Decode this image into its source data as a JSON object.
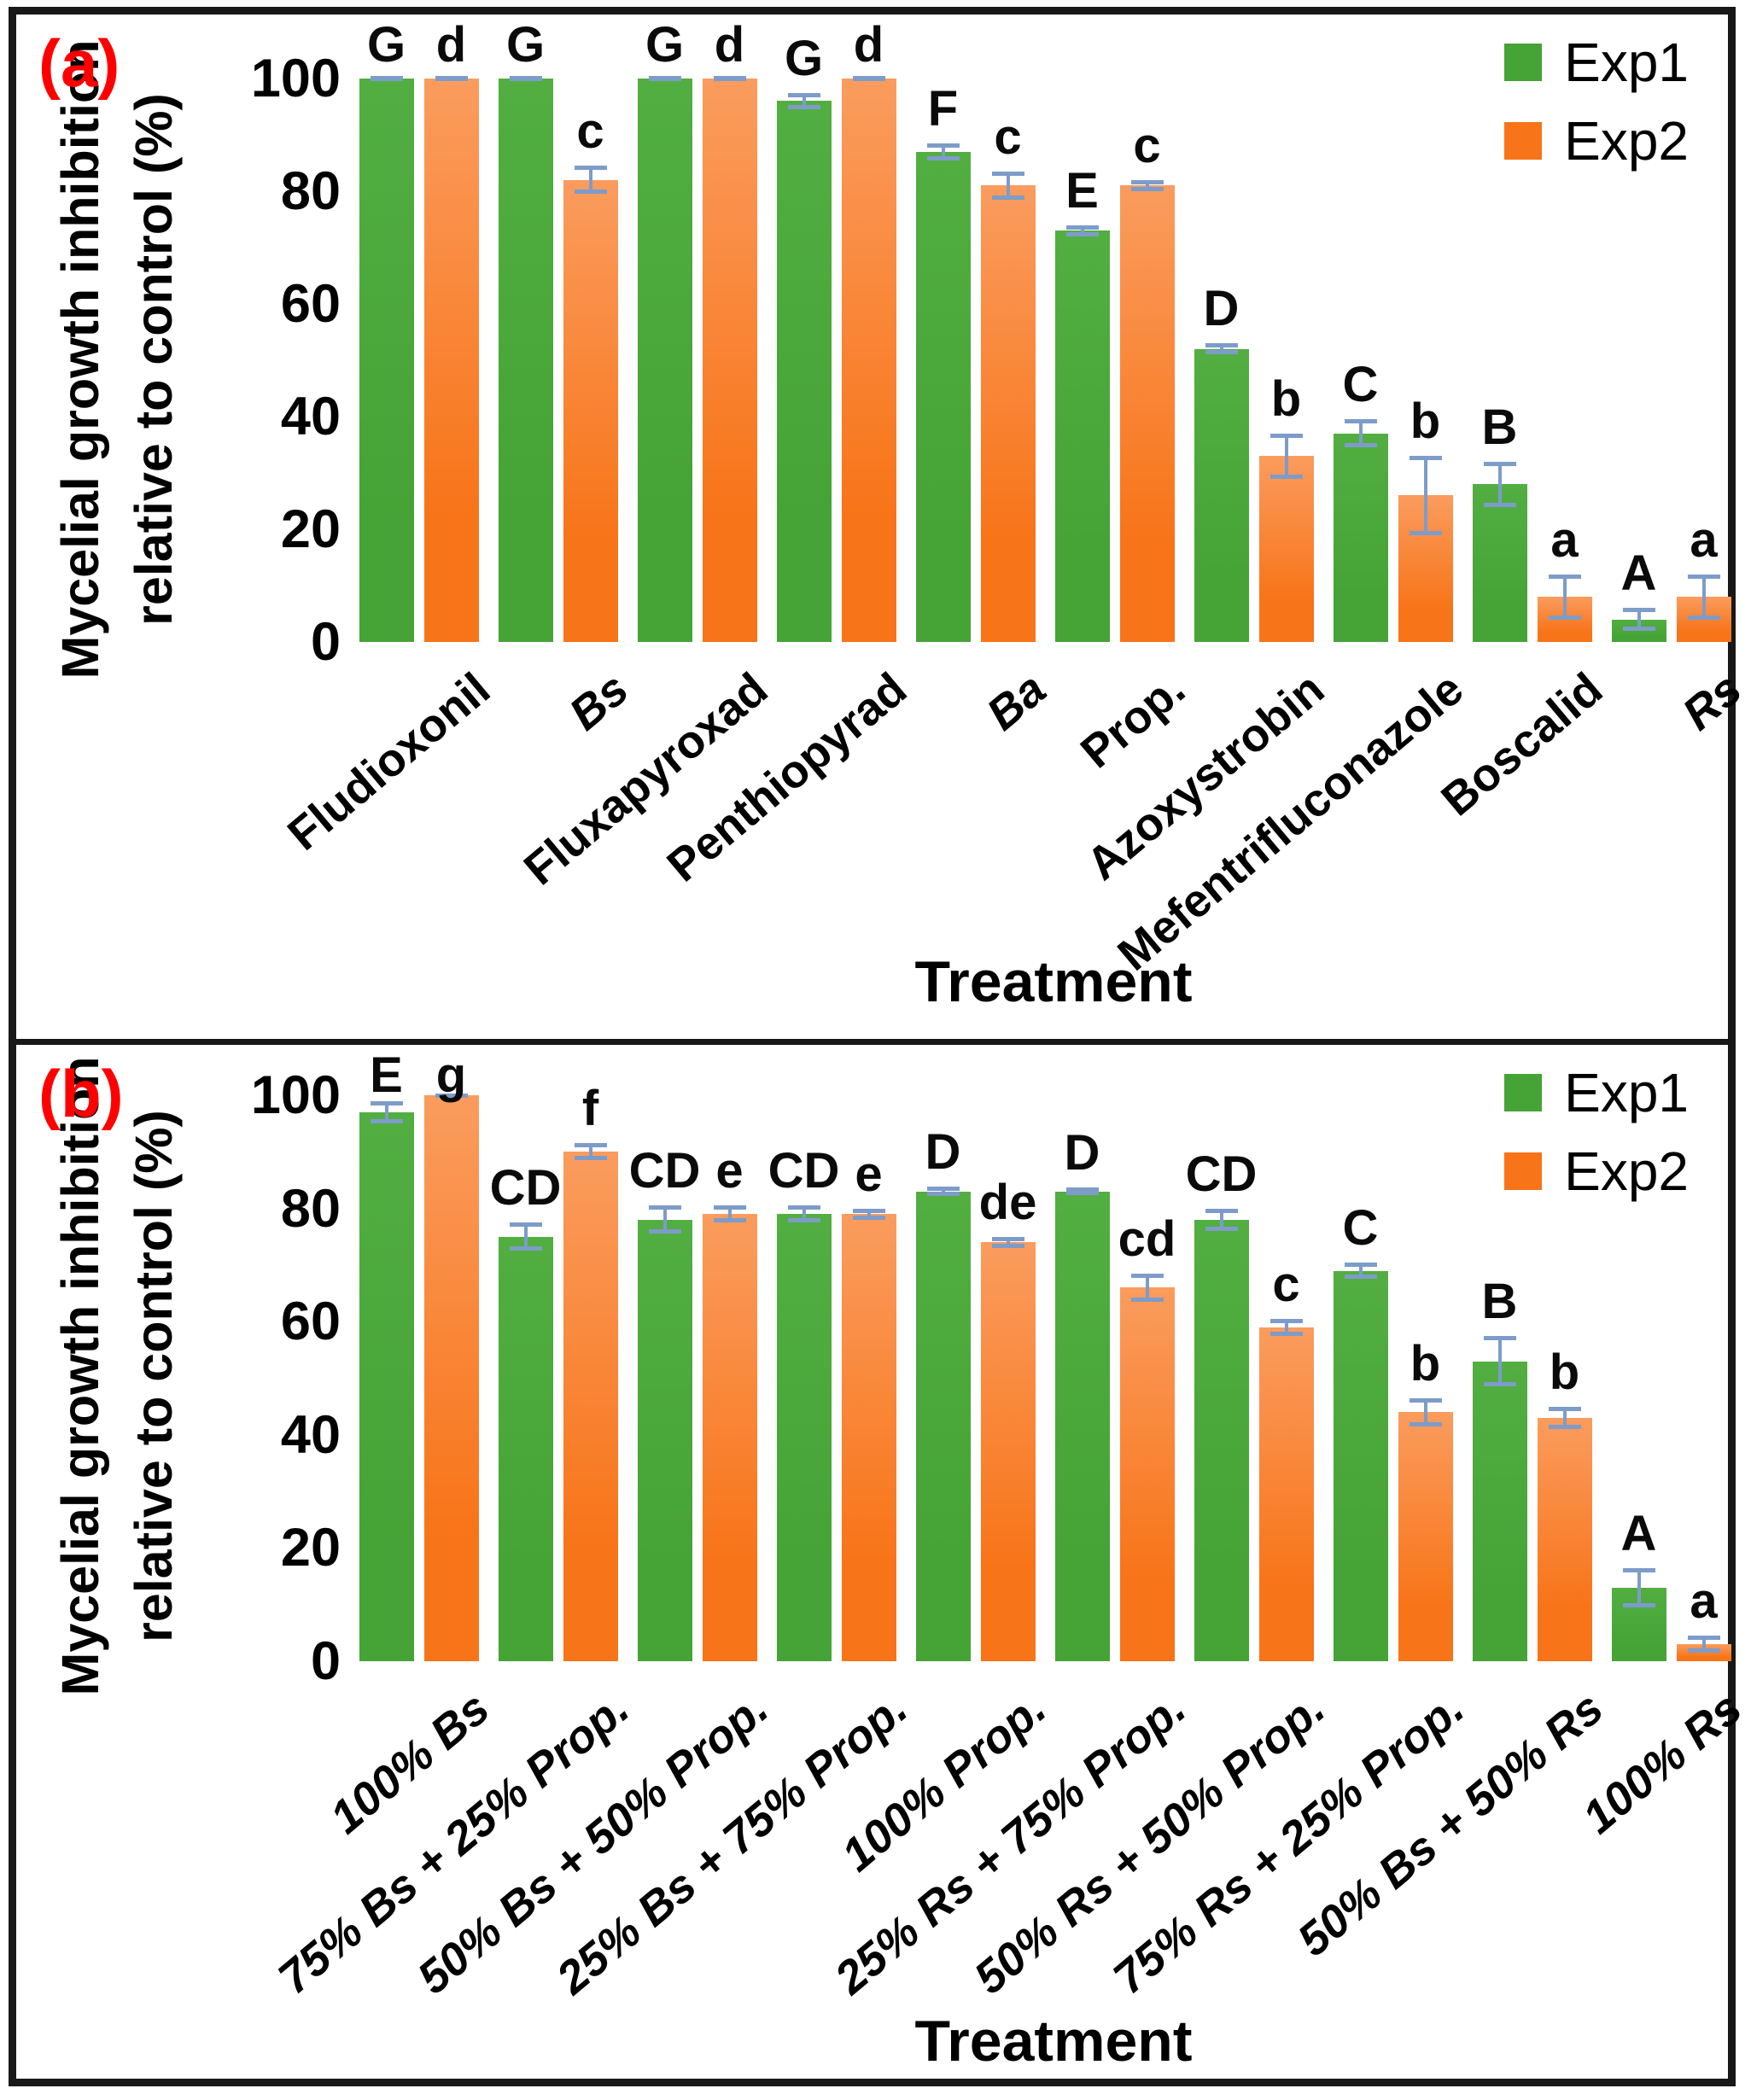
{
  "figure": {
    "ylabel_line1": "Mycelial growth inhibition",
    "ylabel_line2": "relative to control (%)",
    "xlabel": "Treatment",
    "error_bar_color": "#7d9cc9",
    "panel_label_color": "#ff0000",
    "legend": [
      {
        "label": "Exp1",
        "color": "#46a335"
      },
      {
        "label": "Exp2",
        "color": "#f87418"
      }
    ]
  },
  "chart_data": [
    {
      "panel_label": "(a)",
      "type": "bar",
      "title": "",
      "xlabel": "Treatment",
      "ylabel": "Mycelial growth inhibition relative to control (%)",
      "ylim": [
        0,
        100
      ],
      "yticks": [
        0,
        20,
        40,
        60,
        80,
        100
      ],
      "grid": false,
      "legend_position": "top-right",
      "categories": [
        {
          "label": "Fludioxonil",
          "italic": false
        },
        {
          "label": "Bs",
          "italic": true
        },
        {
          "label": "Fluxapyroxad",
          "italic": false
        },
        {
          "label": "Penthiopyrad",
          "italic": false
        },
        {
          "label": "Ba",
          "italic": true
        },
        {
          "label": "Prop.",
          "italic": false
        },
        {
          "label": "Azoxystrobin",
          "italic": false
        },
        {
          "label": "Mefentrifluconazole",
          "italic": false
        },
        {
          "label": "Boscalid",
          "italic": false
        },
        {
          "label": "Rs",
          "italic": true
        }
      ],
      "series": [
        {
          "name": "Exp1",
          "color": "#46a335",
          "color_top": "#52ae40",
          "values": [
            100,
            100,
            100,
            96,
            87,
            73,
            52,
            37,
            28,
            4
          ],
          "errors": [
            0.5,
            0.5,
            0.5,
            1.5,
            1.5,
            1,
            1,
            2.5,
            4,
            2
          ],
          "letters": [
            "G",
            "G",
            "G",
            "G",
            "F",
            "E",
            "D",
            "C",
            "B",
            "A"
          ]
        },
        {
          "name": "Exp2",
          "color": "#f87418",
          "color_top": "#fa9c5e",
          "values": [
            100,
            82,
            100,
            100,
            81,
            81,
            33,
            26,
            8,
            8
          ],
          "errors": [
            0.5,
            2.5,
            0.5,
            0.5,
            2.5,
            1,
            4,
            7,
            4,
            4
          ],
          "letters": [
            "d",
            "c",
            "d",
            "d",
            "c",
            "c",
            "b",
            "b",
            "a",
            "a"
          ]
        }
      ]
    },
    {
      "panel_label": "(b)",
      "type": "bar",
      "title": "",
      "xlabel": "Treatment",
      "ylabel": "Mycelial growth inhibition relative to control (%)",
      "ylim": [
        0,
        100
      ],
      "yticks": [
        0,
        20,
        40,
        60,
        80,
        100
      ],
      "grid": false,
      "legend_position": "top-right",
      "categories": [
        {
          "label": "100% Bs",
          "italic": true
        },
        {
          "label": "75% Bs + 25% Prop.",
          "italic": true
        },
        {
          "label": "50% Bs + 50% Prop.",
          "italic": true
        },
        {
          "label": "25% Bs + 75% Prop.",
          "italic": true
        },
        {
          "label": "100% Prop.",
          "italic": true
        },
        {
          "label": "25% Rs + 75% Prop.",
          "italic": true
        },
        {
          "label": "50% Rs + 50% Prop.",
          "italic": true
        },
        {
          "label": "75% Rs + 25% Prop.",
          "italic": true
        },
        {
          "label": "50% Bs + 50% Rs",
          "italic": true
        },
        {
          "label": "100% Rs",
          "italic": true
        }
      ],
      "series": [
        {
          "name": "Exp1",
          "color": "#46a335",
          "color_top": "#52ae40",
          "values": [
            97,
            75,
            78,
            79,
            83,
            83,
            78,
            69,
            53,
            13
          ],
          "errors": [
            2,
            2.5,
            2.5,
            1.5,
            0.8,
            0.7,
            2,
            1.5,
            4.5,
            3.5
          ],
          "letters": [
            "E",
            "CD",
            "CD",
            "CD",
            "D",
            "D",
            "CD",
            "C",
            "B",
            "A"
          ]
        },
        {
          "name": "Exp2",
          "color": "#f87418",
          "color_top": "#fa9c5e",
          "values": [
            100,
            90,
            79,
            79,
            74,
            66,
            59,
            44,
            43,
            3
          ],
          "errors": [
            0.3,
            1.5,
            1.5,
            1,
            1,
            2.5,
            1.5,
            2.5,
            2,
            1.5
          ],
          "letters": [
            "g",
            "f",
            "e",
            "e",
            "de",
            "cd",
            "c",
            "b",
            "b",
            "a"
          ]
        }
      ]
    }
  ]
}
